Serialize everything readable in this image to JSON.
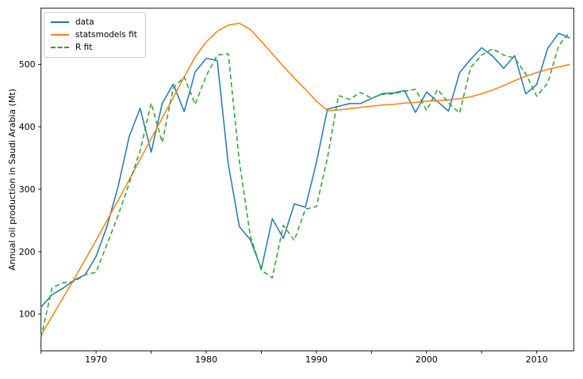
{
  "figure": {
    "kind": "matplotlib-line-chart"
  },
  "colors": {
    "background": "#ffffff",
    "spine": "#000000",
    "tick_text": "#000000",
    "legend_border": "#cccccc",
    "series_data": "#1f77b4",
    "series_statsmodels": "#ff7f0e",
    "series_r": "#2ca02c"
  },
  "chart_data": {
    "type": "line",
    "title": "",
    "xlabel": "",
    "ylabel": "Annual oil production in Saudi Arabia (Mt)",
    "grid": false,
    "legend_position": "upper left",
    "xlim": [
      1965,
      2013.36
    ],
    "ylim": [
      40.9,
      590.3
    ],
    "x_tick_positions": [
      1965,
      1970,
      1975,
      1980,
      1985,
      1990,
      1995,
      2000,
      2005,
      2010
    ],
    "x_tick_labels": [
      "",
      "1970",
      "",
      "1980",
      "",
      "1990",
      "",
      "2000",
      "",
      "2010"
    ],
    "y_ticks": [
      100,
      200,
      300,
      400,
      500
    ],
    "x": [
      1965,
      1966,
      1967,
      1968,
      1969,
      1970,
      1971,
      1972,
      1973,
      1974,
      1975,
      1976,
      1977,
      1978,
      1979,
      1980,
      1981,
      1982,
      1983,
      1984,
      1985,
      1986,
      1987,
      1988,
      1989,
      1990,
      1991,
      1992,
      1993,
      1994,
      1995,
      1996,
      1997,
      1998,
      1999,
      2000,
      2001,
      2002,
      2003,
      2004,
      2005,
      2006,
      2007,
      2008,
      2009,
      2010,
      2011,
      2012,
      2013
    ],
    "series": [
      {
        "name": "data",
        "color": "#1f77b4",
        "style": "solid",
        "values": [
          111.0,
          130.8,
          141.3,
          154.2,
          162.7,
          192.2,
          240.8,
          304.2,
          384.0,
          429.7,
          359.3,
          437.3,
          468.4,
          424.4,
          488.0,
          509.8,
          506.3,
          340.2,
          240.2,
          219.0,
          172.1,
          252.6,
          221.1,
          276.5,
          271.1,
          342.6,
          428.3,
          432.8,
          437.2,
          437.2,
          445.4,
          453.2,
          454.4,
          458.0,
          423.1,
          456.0,
          440.3,
          425.2,
          486.7,
          508.1,
          526.7,
          513.2,
          493.6,
          514.1,
          452.7,
          467.8,
          525.8,
          549.8,
          542.3
        ]
      },
      {
        "name": "statsmodels fit",
        "color": "#ff7f0e",
        "style": "solid",
        "values": [
          66,
          96,
          126,
          156,
          187,
          218,
          250,
          282,
          315,
          348,
          381,
          414,
          447,
          480,
          512,
          536,
          553,
          563,
          566,
          556,
          537,
          517,
          497,
          478,
          460,
          441,
          426,
          427,
          429,
          431,
          433,
          435,
          436,
          438,
          439,
          441,
          442,
          443,
          445,
          448,
          453,
          459,
          466,
          474,
          481,
          487,
          492,
          496,
          500
        ]
      },
      {
        "name": "R fit",
        "color": "#2ca02c",
        "style": "dashed",
        "values": [
          62,
          142,
          150,
          152,
          163,
          167,
          212,
          258,
          309,
          362,
          438,
          375,
          462,
          480,
          436,
          482,
          515,
          517,
          345,
          225,
          170,
          158,
          242,
          218,
          268,
          272,
          350,
          450,
          444,
          455,
          446,
          452,
          453,
          457,
          460,
          426,
          460,
          438,
          422,
          495,
          515,
          525,
          515,
          510,
          485,
          449,
          470,
          530,
          552
        ]
      }
    ]
  }
}
